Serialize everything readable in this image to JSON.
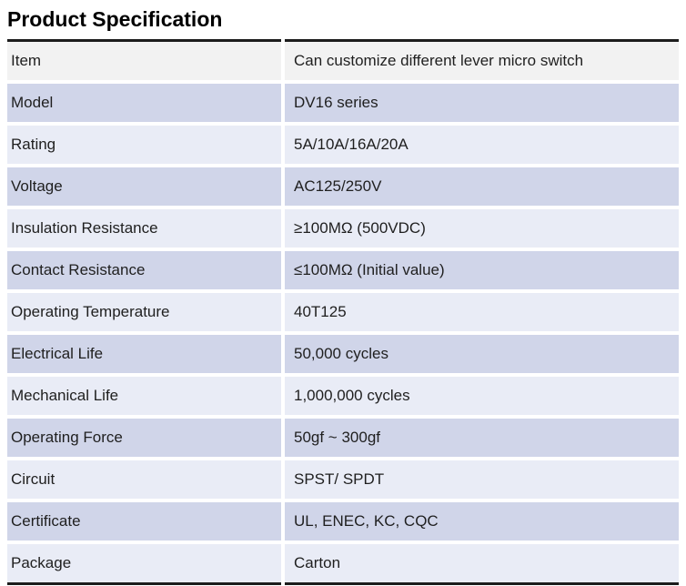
{
  "title": "Product Specification",
  "table": {
    "rows": [
      {
        "label": "Item",
        "value": "Can customize different lever micro switch"
      },
      {
        "label": "Model",
        "value": "DV16 series"
      },
      {
        "label": "Rating",
        "value": "5A/10A/16A/20A"
      },
      {
        "label": "Voltage",
        "value": "AC125/250V"
      },
      {
        "label": "Insulation Resistance",
        "value": "≥100MΩ (500VDC)"
      },
      {
        "label": "Contact Resistance",
        "value": "≤100MΩ (Initial value)"
      },
      {
        "label": "Operating Temperature",
        "value": "40T125"
      },
      {
        "label": "Electrical Life",
        "value": "50,000 cycles"
      },
      {
        "label": "Mechanical Life",
        "value": "1,000,000 cycles"
      },
      {
        "label": "Operating Force",
        "value": "50gf ~ 300gf"
      },
      {
        "label": "Circuit",
        "value": "SPST/ SPDT"
      },
      {
        "label": "Certificate",
        "value": "UL, ENEC, KC, CQC"
      },
      {
        "label": "Package",
        "value": "Carton"
      }
    ],
    "colors": {
      "header_row_bg": "#f2f2f2",
      "dark_row_bg": "#d0d5e9",
      "light_row_bg": "#e9ecf6",
      "rule_color": "#1c1c1c",
      "text_color": "#1f1f1f"
    }
  }
}
